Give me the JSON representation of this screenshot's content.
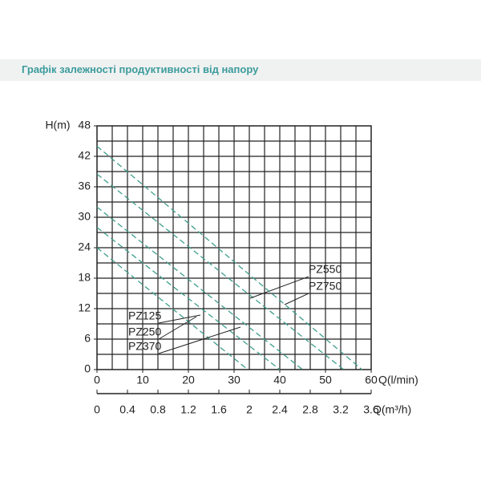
{
  "header": {
    "title": "Графік залежності продуктивності від напору"
  },
  "chart_data": {
    "type": "line",
    "y_label": "H(m)",
    "x_label": "Q(l/min)",
    "x2_label": "Q(m³/h)",
    "xlim": [
      0,
      60
    ],
    "xticks": [
      0,
      10,
      20,
      30,
      40,
      50,
      60
    ],
    "x2lim": [
      0,
      3.6
    ],
    "x2ticks": [
      0,
      0.4,
      0.8,
      1.2,
      1.6,
      2,
      2.4,
      2.8,
      3.2,
      3.6
    ],
    "ylim": [
      0,
      48
    ],
    "yticks": [
      0,
      6,
      12,
      18,
      24,
      30,
      36,
      42,
      48
    ],
    "grid": true,
    "series": [
      {
        "name": "PZ125",
        "color": "#3f9e8c",
        "x": [
          0,
          33
        ],
        "values": [
          24,
          0
        ]
      },
      {
        "name": "PZ250",
        "color": "#3f9e8c",
        "x": [
          0,
          40
        ],
        "values": [
          28,
          0
        ]
      },
      {
        "name": "PZ370",
        "color": "#3f9e8c",
        "x": [
          0,
          45
        ],
        "values": [
          32,
          0
        ]
      },
      {
        "name": "PZ550",
        "color": "#3f9e8c",
        "x": [
          0,
          54
        ],
        "values": [
          38.5,
          0
        ]
      },
      {
        "name": "PZ750",
        "color": "#3f9e8c",
        "x": [
          0,
          58
        ],
        "values": [
          44,
          0
        ]
      }
    ]
  }
}
